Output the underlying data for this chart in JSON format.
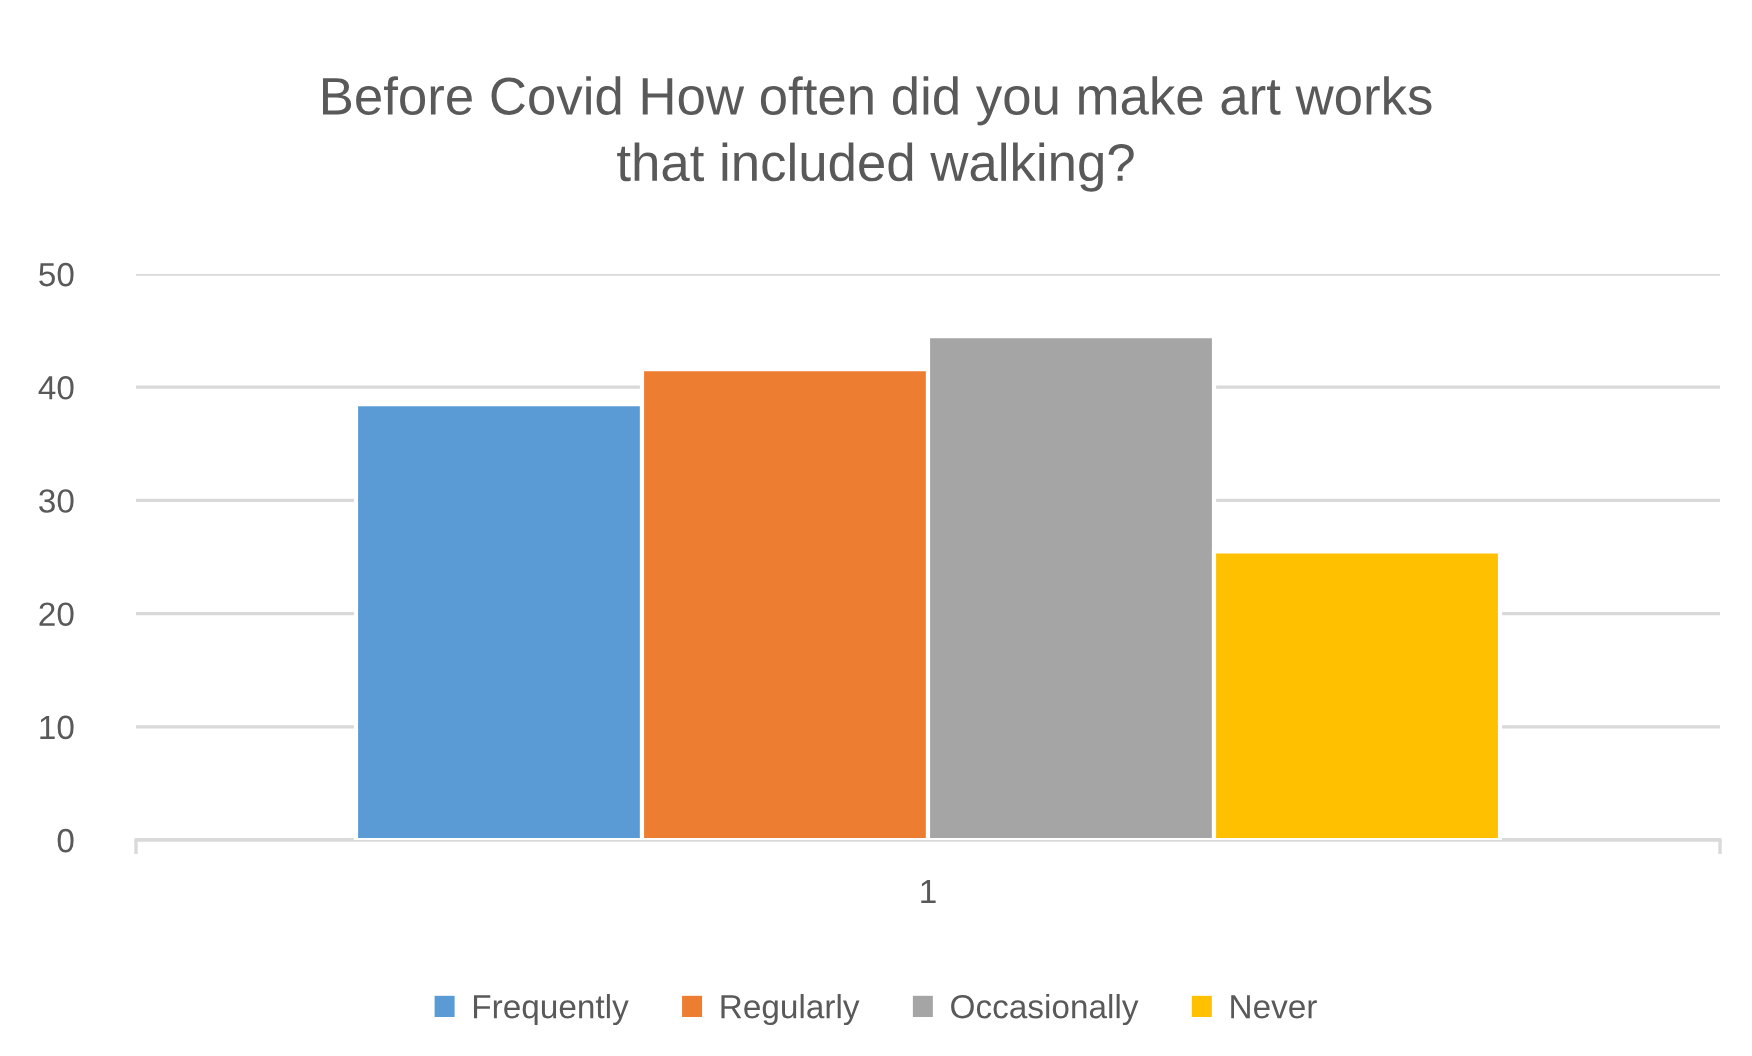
{
  "chart_data": {
    "type": "bar",
    "title": "Before Covid How often did you make art works\nthat included walking?",
    "categories": [
      "1"
    ],
    "series": [
      {
        "name": "Frequently",
        "color": "#5b9bd5",
        "values": [
          38.5
        ]
      },
      {
        "name": "Regularly",
        "color": "#ed7d31",
        "values": [
          41.6
        ]
      },
      {
        "name": "Occasionally",
        "color": "#a5a5a5",
        "values": [
          44.5
        ]
      },
      {
        "name": "Never",
        "color": "#ffc000",
        "values": [
          25.5
        ]
      }
    ],
    "ylim": [
      0,
      50
    ],
    "yticks": [
      0,
      10,
      20,
      30,
      40,
      50
    ],
    "grid": "y",
    "legend": "bottom"
  }
}
